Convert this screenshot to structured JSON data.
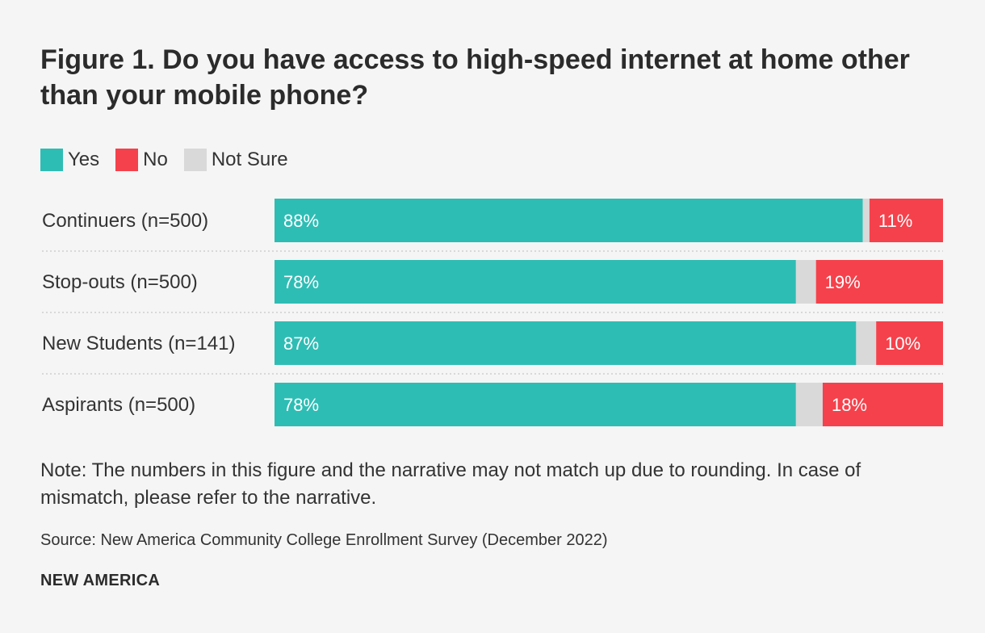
{
  "chart_data": {
    "type": "bar",
    "orientation": "horizontal",
    "stacked": true,
    "title": "Figure 1. Do you have access to high-speed internet at home other than your mobile phone?",
    "categories": [
      "Continuers (n=500)",
      "Stop-outs (n=500)",
      "New Students (n=141)",
      "Aspirants (n=500)"
    ],
    "series": [
      {
        "name": "Yes",
        "values": [
          88,
          78,
          87,
          78
        ],
        "labels": [
          "88%",
          "78%",
          "87%",
          "78%"
        ],
        "color": "#2ebdb4"
      },
      {
        "name": "Not Sure",
        "values": [
          1,
          3,
          3,
          4
        ],
        "labels": [
          "",
          "",
          "",
          ""
        ],
        "color": "#d9d9d9"
      },
      {
        "name": "No",
        "values": [
          11,
          19,
          10,
          18
        ],
        "labels": [
          "11%",
          "19%",
          "10%",
          "18%"
        ],
        "color": "#f5414b"
      }
    ],
    "legend": [
      {
        "name": "Yes",
        "color": "#2ebdb4"
      },
      {
        "name": "No",
        "color": "#f5414b"
      },
      {
        "name": "Not Sure",
        "color": "#d9d9d9"
      }
    ],
    "xlim": [
      0,
      100
    ],
    "grid": false,
    "legend_position": "top-left"
  },
  "note": "Note: The numbers in this figure and the narrative may not match up due to rounding. In case of mismatch, please refer to the narrative.",
  "source": "Source: New America Community College Enrollment Survey (December 2022)",
  "brand": "NEW AMERICA"
}
